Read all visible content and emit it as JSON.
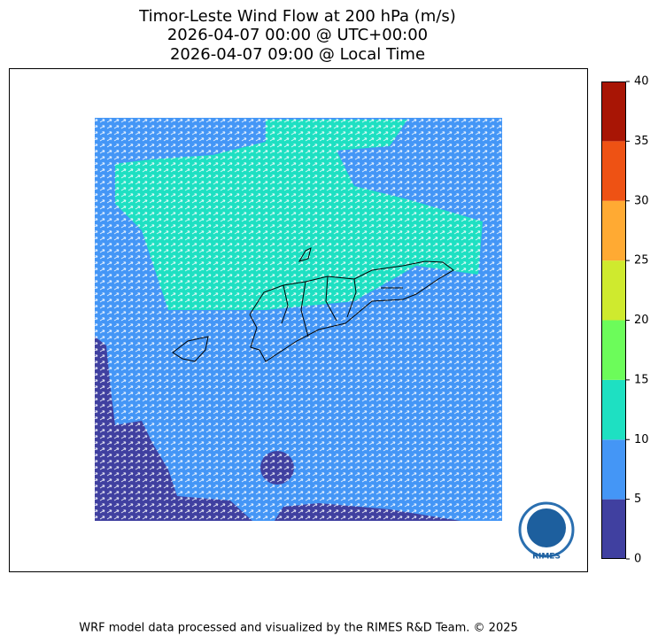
{
  "title": [
    "Timor-Leste Wind Flow at 200 hPa (m/s)",
    "2026-04-07 00:00 @ UTC+00:00",
    "2026-04-07 09:00 @ Local Time"
  ],
  "colorbar": {
    "ticks": [
      0,
      5,
      10,
      15,
      20,
      25,
      30,
      35,
      40
    ],
    "colors": [
      "#4040a0",
      "#4496f6",
      "#1ee0c2",
      "#6cfc5a",
      "#cfea2e",
      "#ffaa33",
      "#ee5214",
      "#a81505"
    ]
  },
  "logo": {
    "label": "RIMES"
  },
  "footer": "WRF model data processed and visualized by the RIMES R&D Team. © 2025"
}
